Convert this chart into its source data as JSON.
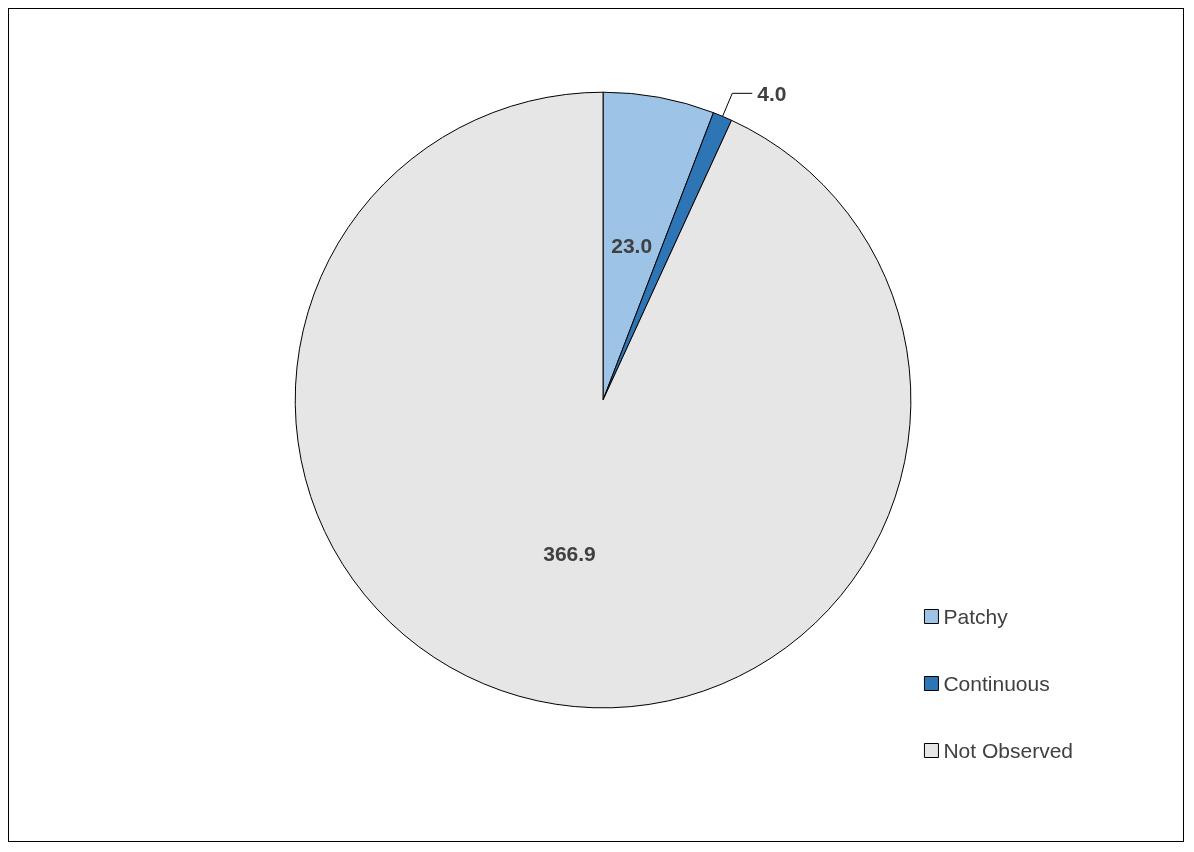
{
  "chart_data": {
    "type": "pie",
    "categories": [
      "Patchy",
      "Continuous",
      "Not Observed"
    ],
    "values": [
      23.0,
      4.0,
      366.9
    ],
    "value_labels": [
      "23.0",
      "4.0",
      "366.9"
    ],
    "colors": [
      "#9dc3e6",
      "#2e75b6",
      "#e7e6e6"
    ],
    "legend": "bottom right"
  }
}
